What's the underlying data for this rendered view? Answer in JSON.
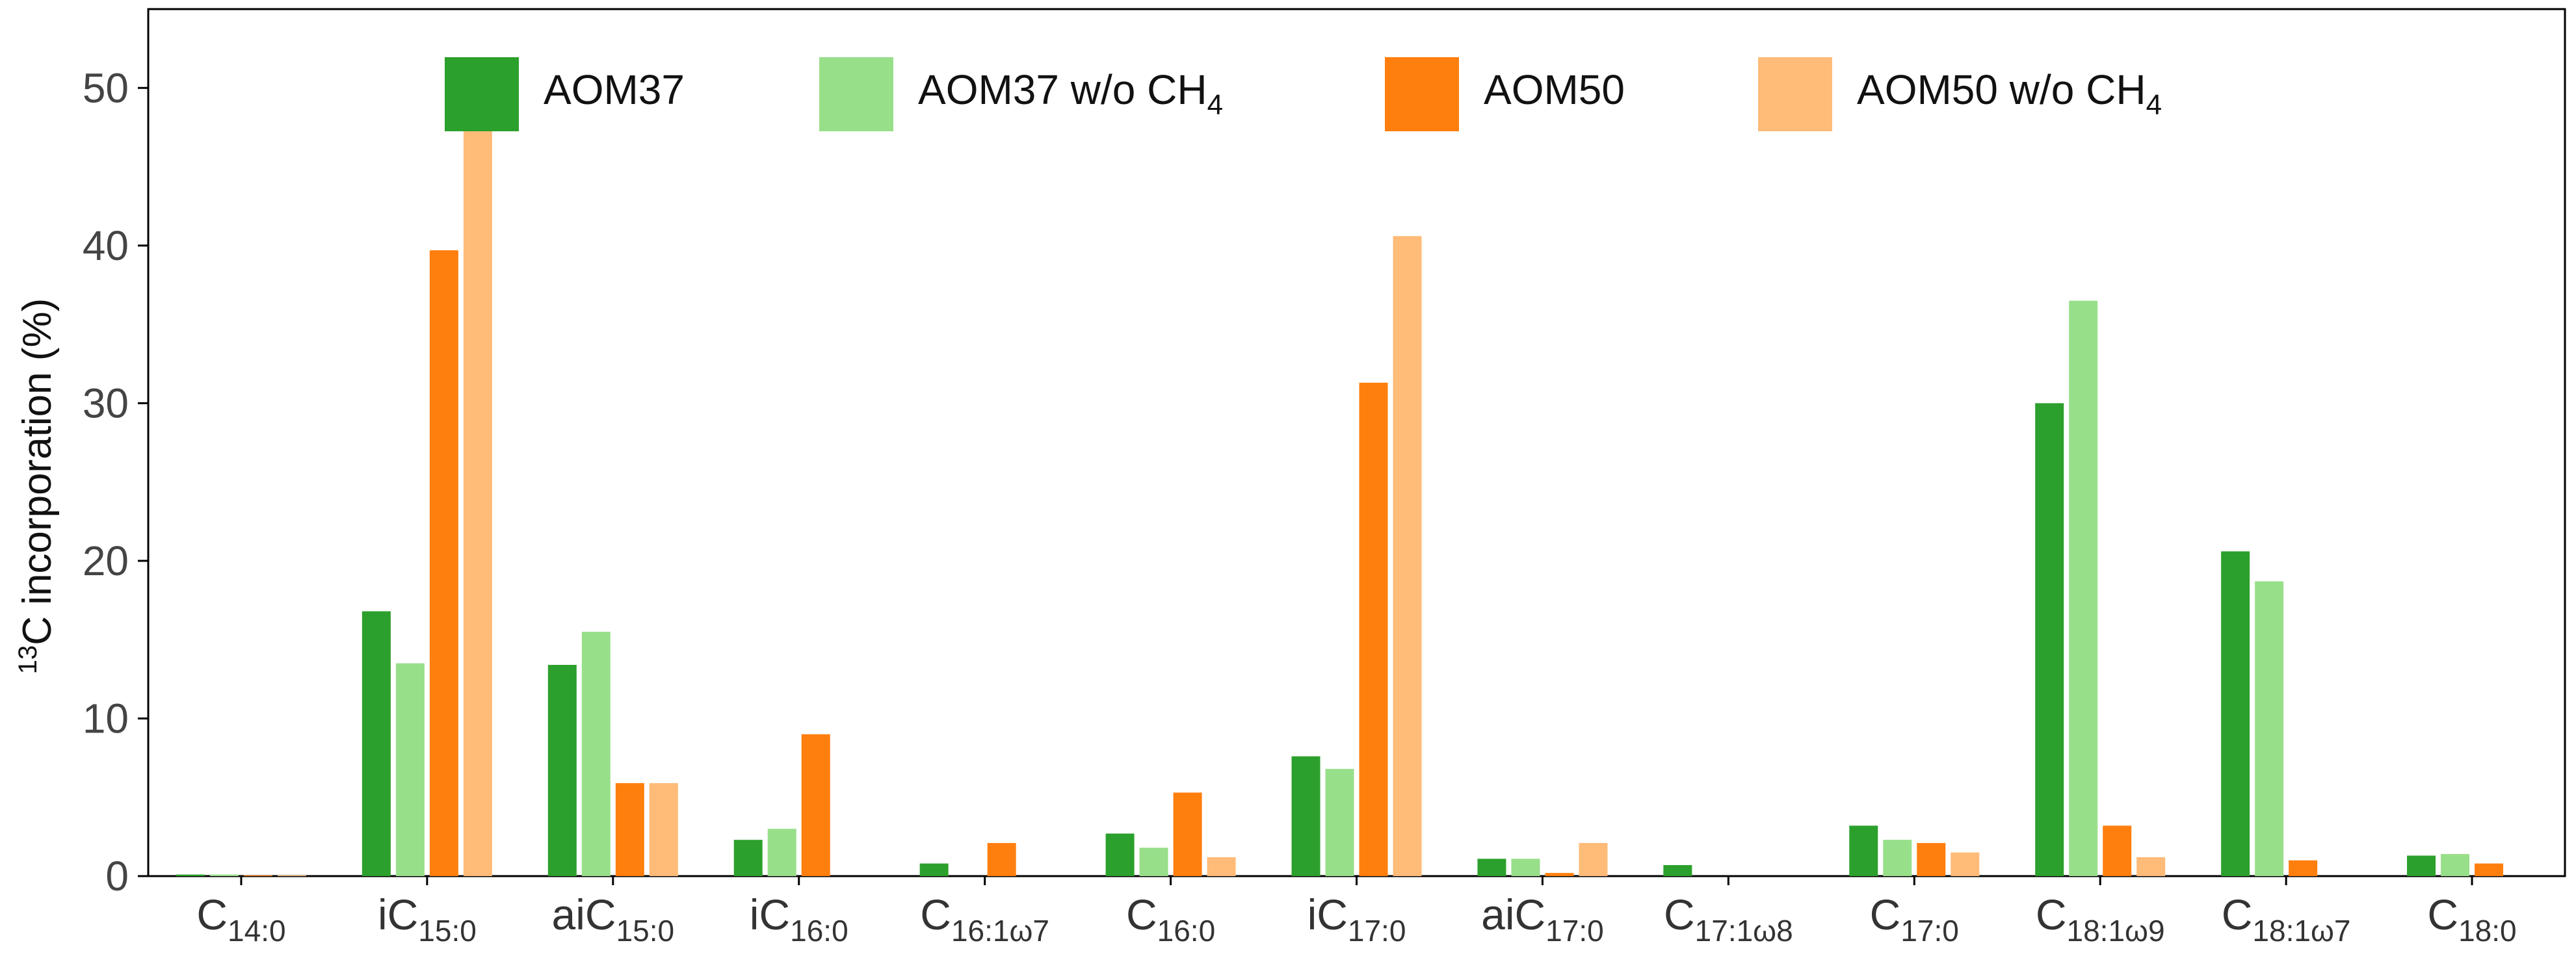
{
  "chart_data": {
    "type": "bar",
    "ylabel": {
      "sup": "13",
      "text": "C incorporation (%)"
    },
    "ylim": [
      0,
      55
    ],
    "yticks": [
      0,
      10,
      20,
      30,
      40,
      50
    ],
    "grid": false,
    "legend_placement": "top",
    "categories": [
      {
        "prefix": "C",
        "sub": "14:0"
      },
      {
        "prefix": "iC",
        "sub": "15:0"
      },
      {
        "prefix": "aiC",
        "sub": "15:0"
      },
      {
        "prefix": "iC",
        "sub": "16:0"
      },
      {
        "prefix": "C",
        "sub": "16:1ω7"
      },
      {
        "prefix": "C",
        "sub": "16:0"
      },
      {
        "prefix": "iC",
        "sub": "17:0"
      },
      {
        "prefix": "aiC",
        "sub": "17:0"
      },
      {
        "prefix": "C",
        "sub": "17:1ω8"
      },
      {
        "prefix": "C",
        "sub": "17:0"
      },
      {
        "prefix": "C",
        "sub": "18:1ω9"
      },
      {
        "prefix": "C",
        "sub": "18:1ω7"
      },
      {
        "prefix": "C",
        "sub": "18:0"
      }
    ],
    "series": [
      {
        "name": "AOM37",
        "name_sub": "",
        "color": "#2ca02c",
        "values": [
          0.1,
          16.8,
          13.4,
          2.3,
          0.8,
          2.7,
          7.6,
          1.1,
          0.7,
          3.2,
          30.0,
          20.6,
          1.3
        ]
      },
      {
        "name": "AOM37 w/o CH",
        "name_sub": "4",
        "color": "#98df8a",
        "values": [
          0.1,
          13.5,
          15.5,
          3.0,
          0.0,
          1.8,
          6.8,
          1.1,
          0.0,
          2.3,
          36.5,
          18.7,
          1.4
        ]
      },
      {
        "name": "AOM50",
        "name_sub": "",
        "color": "#ff7f0e",
        "values": [
          0.05,
          39.7,
          5.9,
          9.0,
          2.1,
          5.3,
          31.3,
          0.2,
          0.0,
          2.1,
          3.2,
          1.0,
          0.8
        ]
      },
      {
        "name": "AOM50 w/o CH",
        "name_sub": "4",
        "color": "#ffbb78",
        "values": [
          0.05,
          48.0,
          5.9,
          0.0,
          0.0,
          1.2,
          40.6,
          2.1,
          0.0,
          1.5,
          1.2,
          0.0,
          0.0
        ]
      }
    ]
  }
}
